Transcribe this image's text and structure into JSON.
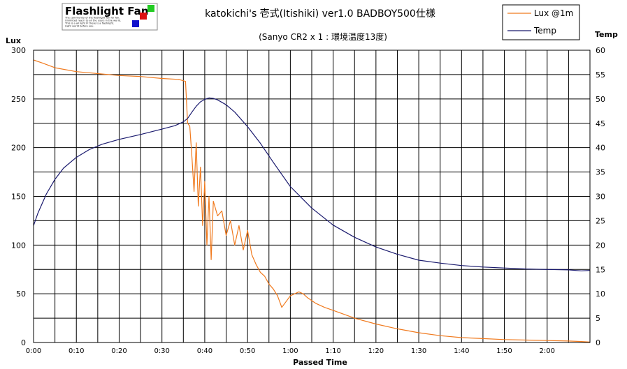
{
  "logo": {
    "text": "Flashlight Fan",
    "tagline": [
      "The community of the flashlight fan for fan.",
      "Unlimited reach to all the users in the world.",
      "This is a all light IF there is a flashlight.",
      "Light world before you."
    ],
    "colors": [
      "#22cc22",
      "#dd1111",
      "#1111cc"
    ]
  },
  "chart_data": {
    "type": "line",
    "title": "katokichi's 壱式(Itishiki) ver1.0 BADBOY500仕様",
    "subtitle": "(Sanyo CR2 x 1 : 環境温度13度)",
    "xlabel": "Passed Time",
    "ylabel": "Lux",
    "y2label": "Temp",
    "xlim": [
      0,
      130
    ],
    "ylim": [
      0,
      300
    ],
    "y2lim": [
      0,
      60
    ],
    "xticks": [
      "0:00",
      "0:10",
      "0:20",
      "0:30",
      "0:40",
      "0:50",
      "1:00",
      "1:10",
      "1:20",
      "1:30",
      "1:40",
      "1:50",
      "2:00"
    ],
    "yticks": [
      0,
      50,
      100,
      150,
      200,
      250,
      300
    ],
    "y2ticks": [
      0,
      5,
      10,
      15,
      20,
      25,
      30,
      35,
      40,
      45,
      50,
      55,
      60
    ],
    "grid": true,
    "legend_position": "top-right",
    "series": [
      {
        "name": "Lux @1m",
        "color": "#f07a1e",
        "axis": "left",
        "x": [
          0,
          2,
          5,
          10,
          15,
          20,
          25,
          30,
          34,
          35.5,
          36,
          36.5,
          37,
          37.5,
          38,
          38.5,
          39,
          39.5,
          40,
          40.5,
          41,
          41.5,
          42,
          43,
          44,
          45,
          46,
          47,
          48,
          49,
          50,
          51,
          52,
          53,
          54,
          55,
          56,
          57,
          57.5,
          58,
          59,
          60,
          61,
          62,
          63,
          64,
          66,
          68,
          70,
          75,
          80,
          85,
          90,
          95,
          100,
          105,
          110,
          115,
          120,
          125,
          128,
          130
        ],
        "values": [
          290,
          287,
          282,
          278,
          276,
          274,
          273,
          271,
          270,
          268,
          225,
          222,
          190,
          155,
          205,
          140,
          180,
          120,
          165,
          100,
          150,
          85,
          145,
          130,
          135,
          110,
          125,
          100,
          120,
          95,
          115,
          90,
          80,
          72,
          68,
          60,
          55,
          48,
          42,
          36,
          42,
          48,
          50,
          52,
          50,
          46,
          40,
          36,
          33,
          25,
          19,
          14,
          10,
          7,
          5,
          4,
          3,
          2.5,
          2,
          1.5,
          1,
          0.5
        ]
      },
      {
        "name": "Temp",
        "color": "#1a1a6e",
        "axis": "right",
        "x": [
          0,
          1,
          2,
          3,
          5,
          7,
          10,
          13,
          16,
          20,
          25,
          30,
          33,
          35,
          36,
          37,
          38,
          39,
          40,
          41,
          42,
          43,
          45,
          47,
          50,
          53,
          56,
          60,
          65,
          70,
          75,
          80,
          85,
          90,
          95,
          100,
          105,
          110,
          115,
          120,
          125,
          128,
          130
        ],
        "values": [
          24,
          26.5,
          28.5,
          30.5,
          33.5,
          35.8,
          38,
          39.6,
          40.7,
          41.7,
          42.7,
          43.8,
          44.5,
          45.3,
          46,
          47.3,
          48.5,
          49.4,
          49.9,
          50.2,
          50.1,
          49.8,
          48.8,
          47.3,
          44.3,
          40.9,
          37,
          32,
          27.6,
          24.1,
          21.6,
          19.6,
          18.1,
          16.9,
          16.3,
          15.8,
          15.5,
          15.3,
          15.1,
          15,
          14.9,
          14.7,
          14.8
        ]
      }
    ]
  }
}
